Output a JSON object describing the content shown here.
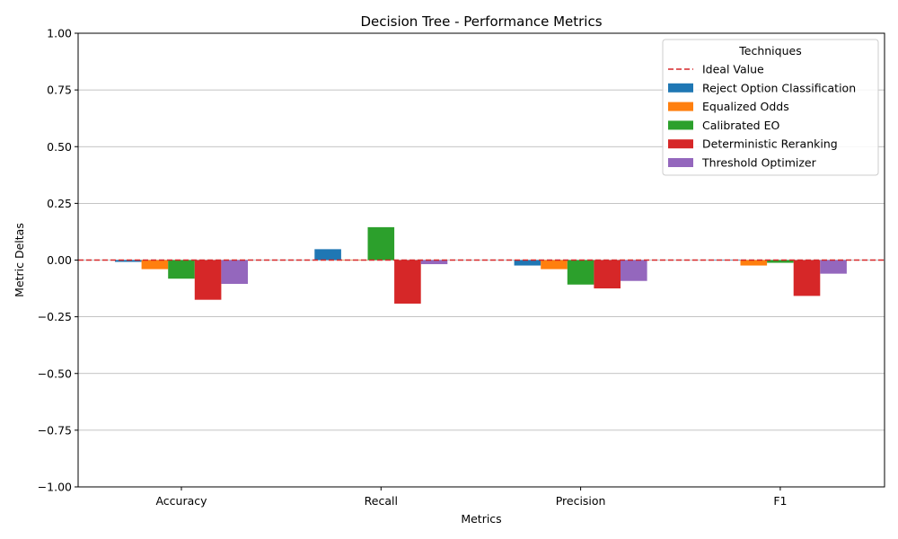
{
  "chart_data": {
    "type": "bar",
    "title": "Decision Tree - Performance Metrics",
    "xlabel": "Metrics",
    "ylabel": "Metric Deltas",
    "categories": [
      "Accuracy",
      "Recall",
      "Precision",
      "F1"
    ],
    "ylim": [
      -1.0,
      1.0
    ],
    "yticks": [
      "−1.00",
      "−0.75",
      "−0.50",
      "−0.25",
      "0.00",
      "0.25",
      "0.50",
      "0.75",
      "1.00"
    ],
    "ytick_values": [
      -1.0,
      -0.75,
      -0.5,
      -0.25,
      0.0,
      0.25,
      0.5,
      0.75,
      1.0
    ],
    "grid": "horizontal",
    "reference_line": {
      "name": "Ideal Value",
      "value": 0.0,
      "color": "#d62728",
      "style": "dashed"
    },
    "legend": {
      "title": "Techniques",
      "placement": "top-right"
    },
    "series": [
      {
        "name": "Reject Option Classification",
        "color": "#1f77b4",
        "values": [
          -0.008,
          0.048,
          -0.024,
          0.002
        ]
      },
      {
        "name": "Equalized Odds",
        "color": "#ff7f0e",
        "values": [
          -0.04,
          0.0,
          -0.04,
          -0.024
        ]
      },
      {
        "name": "Calibrated EO",
        "color": "#2ca02c",
        "values": [
          -0.082,
          0.145,
          -0.108,
          -0.012
        ]
      },
      {
        "name": "Deterministic Reranking",
        "color": "#d62728",
        "values": [
          -0.175,
          -0.192,
          -0.125,
          -0.158
        ]
      },
      {
        "name": "Threshold Optimizer",
        "color": "#9467bd",
        "values": [
          -0.105,
          -0.018,
          -0.092,
          -0.06
        ]
      }
    ]
  }
}
